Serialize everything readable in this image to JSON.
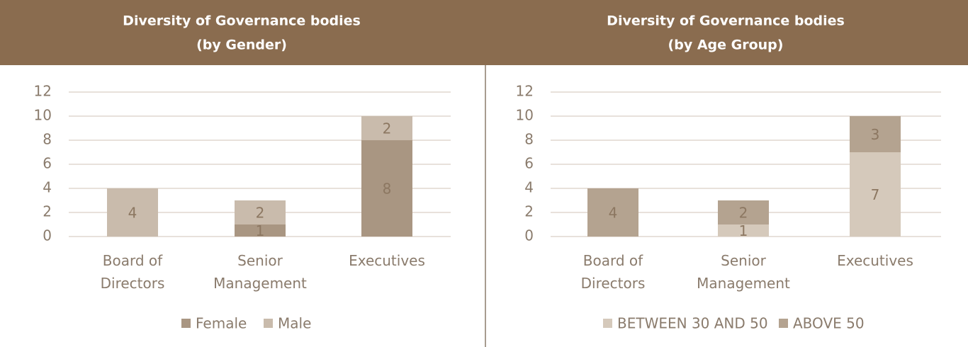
{
  "chart_data": [
    {
      "type": "stacked_bar",
      "title": "Diversity of Governance bodies",
      "subtitle": "(by Gender)",
      "categories": [
        "Board of Directors",
        "Senior Management",
        "Executives"
      ],
      "series": [
        {
          "name": "Female",
          "color": "#a99682",
          "values": [
            0,
            1,
            8
          ]
        },
        {
          "name": "Male",
          "color": "#c9bbac",
          "values": [
            4,
            2,
            2
          ]
        }
      ],
      "ylim": [
        0,
        12
      ],
      "yticks": [
        0,
        2,
        4,
        6,
        8,
        10,
        12
      ],
      "grid": true,
      "legend": "bottom"
    },
    {
      "type": "stacked_bar",
      "title": "Diversity of Governance bodies",
      "subtitle": "(by Age Group)",
      "categories": [
        "Board of Directors",
        "Senior Management",
        "Executives"
      ],
      "series": [
        {
          "name": "BETWEEN 30 AND 50",
          "color": "#d5c9bb",
          "values": [
            0,
            1,
            7
          ]
        },
        {
          "name": "ABOVE 50",
          "color": "#b4a390",
          "values": [
            4,
            2,
            3
          ]
        }
      ],
      "ylim": [
        0,
        12
      ],
      "yticks": [
        0,
        2,
        4,
        6,
        8,
        10,
        12
      ],
      "grid": true,
      "legend": "bottom"
    }
  ]
}
